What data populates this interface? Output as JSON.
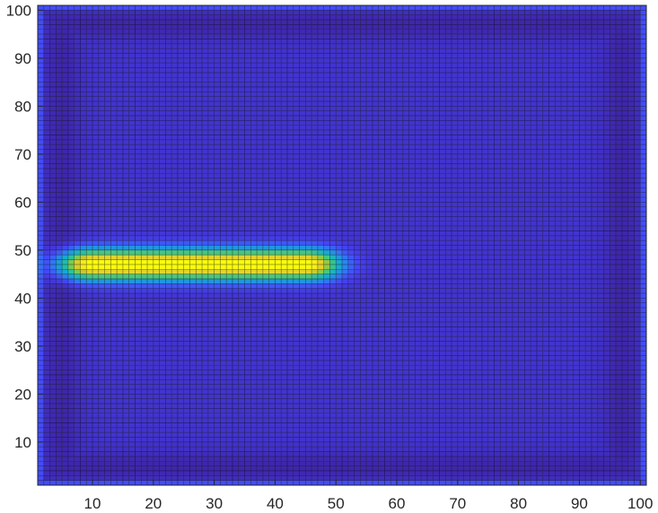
{
  "chart_data": {
    "type": "heatmap",
    "title": "",
    "xlabel": "",
    "ylabel": "",
    "xlim": [
      1,
      101
    ],
    "ylim": [
      1,
      101
    ],
    "grid_size": [
      101,
      101
    ],
    "x_ticks": [
      10,
      20,
      30,
      40,
      50,
      60,
      70,
      80,
      90,
      100
    ],
    "y_ticks": [
      10,
      20,
      30,
      40,
      50,
      60,
      70,
      80,
      90,
      100
    ],
    "colormap": "parula",
    "colormap_stops": [
      "#3e26a8",
      "#4743f8",
      "#2f80f2",
      "#15a9d3",
      "#24c0a4",
      "#6ccd5a",
      "#c3c62c",
      "#f3d82b",
      "#f9fb0e"
    ],
    "edge_color": "#000000",
    "description_values": {
      "background_level": 0.06,
      "border_valley_level": 0.0,
      "hot_spot_peak": 1.0,
      "hot_spot_x_range": [
        10,
        45
      ],
      "hot_spot_y_center": 47
    }
  }
}
